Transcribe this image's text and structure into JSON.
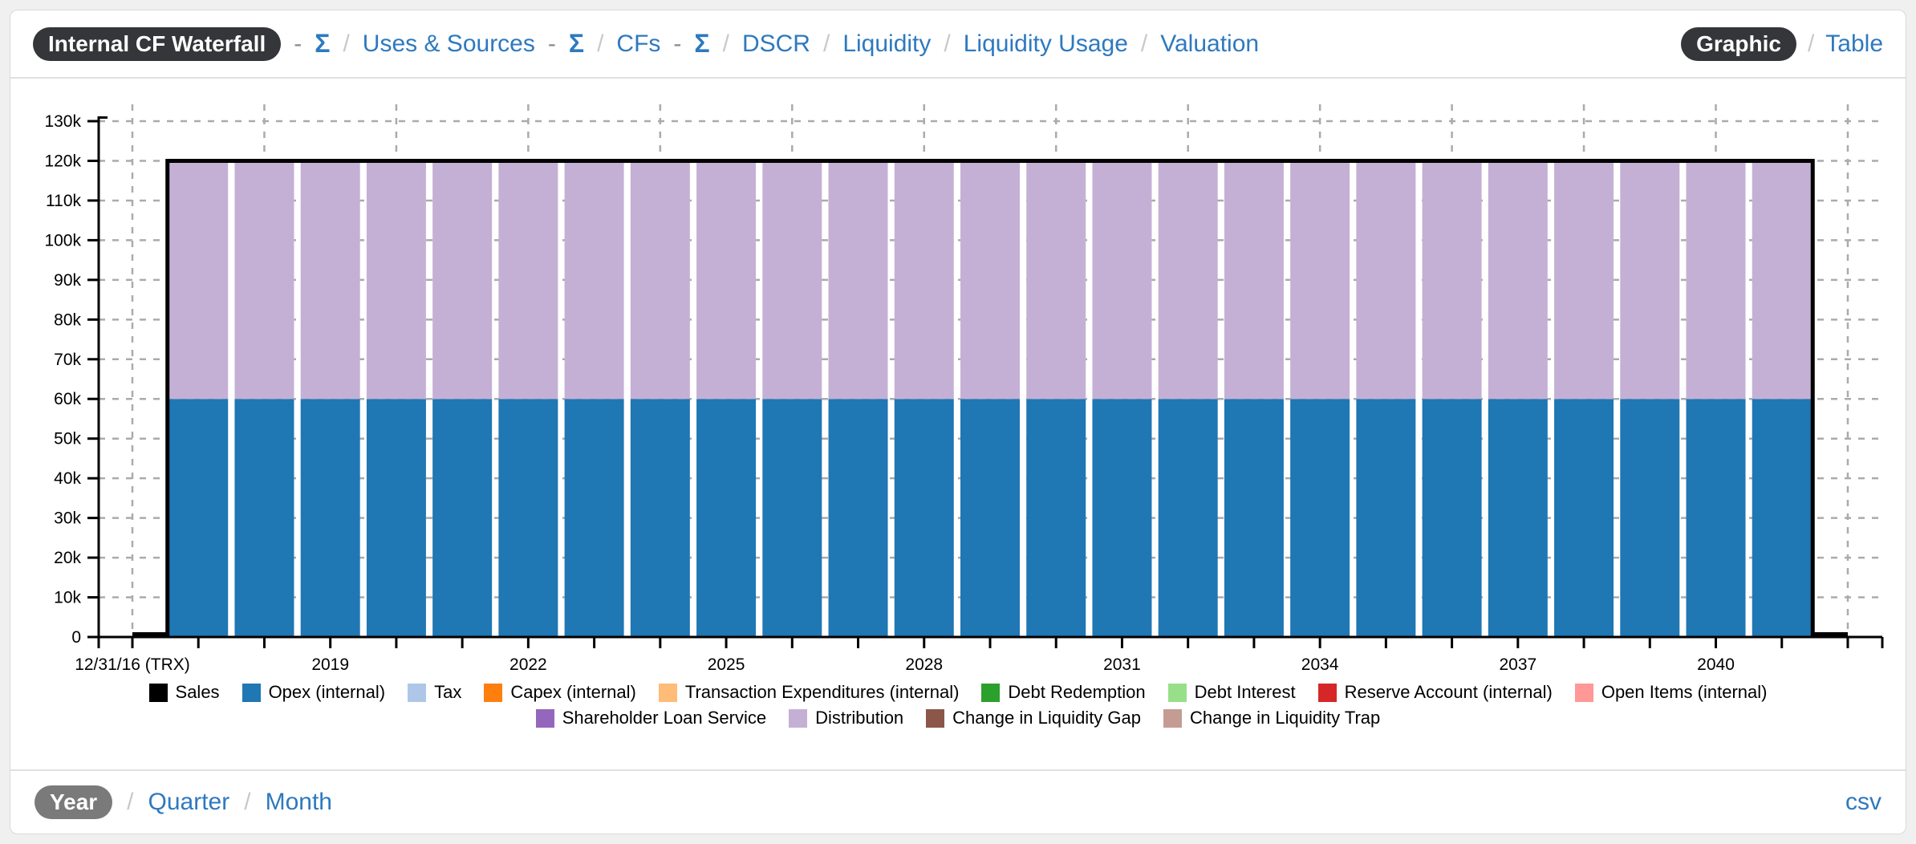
{
  "theme": {
    "page_bg": "#f0f0f0",
    "card_bg": "#ffffff",
    "card_border": "#d9d9d9",
    "divider": "#e0e0e0",
    "link_blue": "#2e79bf",
    "pill_dark_bg": "#343639",
    "pill_gray_bg": "#7a7a7a",
    "pill_text": "#ffffff",
    "separator_gray": "#c9c9c9",
    "dash_gray": "#8c8c8c",
    "axis_black": "#000000",
    "grid_gray": "#ababab"
  },
  "header": {
    "nav": [
      {
        "type": "pill",
        "label": "Internal CF Waterfall"
      },
      {
        "type": "dash",
        "label": "-"
      },
      {
        "type": "link",
        "label": "Σ"
      },
      {
        "type": "sep",
        "label": "/"
      },
      {
        "type": "link",
        "label": "Uses & Sources"
      },
      {
        "type": "dash",
        "label": "-"
      },
      {
        "type": "link",
        "label": "Σ"
      },
      {
        "type": "sep",
        "label": "/"
      },
      {
        "type": "link",
        "label": "CFs"
      },
      {
        "type": "dash",
        "label": "-"
      },
      {
        "type": "link",
        "label": "Σ"
      },
      {
        "type": "sep",
        "label": "/"
      },
      {
        "type": "link",
        "label": "DSCR"
      },
      {
        "type": "sep",
        "label": "/"
      },
      {
        "type": "link",
        "label": "Liquidity"
      },
      {
        "type": "sep",
        "label": "/"
      },
      {
        "type": "link",
        "label": "Liquidity Usage"
      },
      {
        "type": "sep",
        "label": "/"
      },
      {
        "type": "link",
        "label": "Valuation"
      }
    ],
    "view_toggle": {
      "selected": "Graphic",
      "separator": "/",
      "alternate": "Table"
    }
  },
  "chart_data": {
    "type": "bar",
    "stacked": true,
    "x_axis_years": {
      "start": 2016,
      "end": 2042
    },
    "bar_years": {
      "start": 2017,
      "end": 2041
    },
    "x_tick_labels": [
      {
        "year": 2016,
        "label": "12/31/16 (TRX)"
      },
      {
        "year": 2019,
        "label": "2019"
      },
      {
        "year": 2022,
        "label": "2022"
      },
      {
        "year": 2025,
        "label": "2025"
      },
      {
        "year": 2028,
        "label": "2028"
      },
      {
        "year": 2031,
        "label": "2031"
      },
      {
        "year": 2034,
        "label": "2034"
      },
      {
        "year": 2037,
        "label": "2037"
      },
      {
        "year": 2040,
        "label": "2040"
      }
    ],
    "ylim": [
      0,
      130000
    ],
    "y_tick_step": 10000,
    "y_tick_labels": [
      "0",
      "10k",
      "20k",
      "30k",
      "40k",
      "50k",
      "60k",
      "70k",
      "80k",
      "90k",
      "100k",
      "110k",
      "120k",
      "130k"
    ],
    "series": [
      {
        "name": "Opex (internal)",
        "color": "#1f77b4",
        "value_each_year": 60000
      },
      {
        "name": "Distribution",
        "color": "#c5b0d5",
        "value_each_year": 60000
      }
    ],
    "line": {
      "name": "Sales",
      "color": "#000000",
      "value_each_year": 120000,
      "zero_before_first_bar": true,
      "zero_after_last_bar": true
    },
    "grid": {
      "horizontal_every": 10000,
      "vertical_every_years": 2
    }
  },
  "legend": {
    "rows": [
      [
        {
          "label": "Sales",
          "color": "#000000"
        },
        {
          "label": "Opex (internal)",
          "color": "#1f77b4"
        },
        {
          "label": "Tax",
          "color": "#aec7e8"
        },
        {
          "label": "Capex (internal)",
          "color": "#ff7f0e"
        },
        {
          "label": "Transaction Expenditures (internal)",
          "color": "#ffbb78"
        },
        {
          "label": "Debt Redemption",
          "color": "#2ca02c"
        },
        {
          "label": "Debt Interest",
          "color": "#98df8a"
        },
        {
          "label": "Reserve Account (internal)",
          "color": "#d62728"
        },
        {
          "label": "Open Items (internal)",
          "color": "#ff9896"
        }
      ],
      [
        {
          "label": "Shareholder Loan Service",
          "color": "#9467bd"
        },
        {
          "label": "Distribution",
          "color": "#c5b0d5"
        },
        {
          "label": "Change in Liquidity Gap",
          "color": "#8c564b"
        },
        {
          "label": "Change in Liquidity Trap",
          "color": "#c49c94"
        }
      ]
    ]
  },
  "footer": {
    "granularity": [
      {
        "label": "Year",
        "selected": true
      },
      {
        "label": "Quarter",
        "selected": false
      },
      {
        "label": "Month",
        "selected": false
      }
    ],
    "separator": "/",
    "export_label": "csv"
  }
}
